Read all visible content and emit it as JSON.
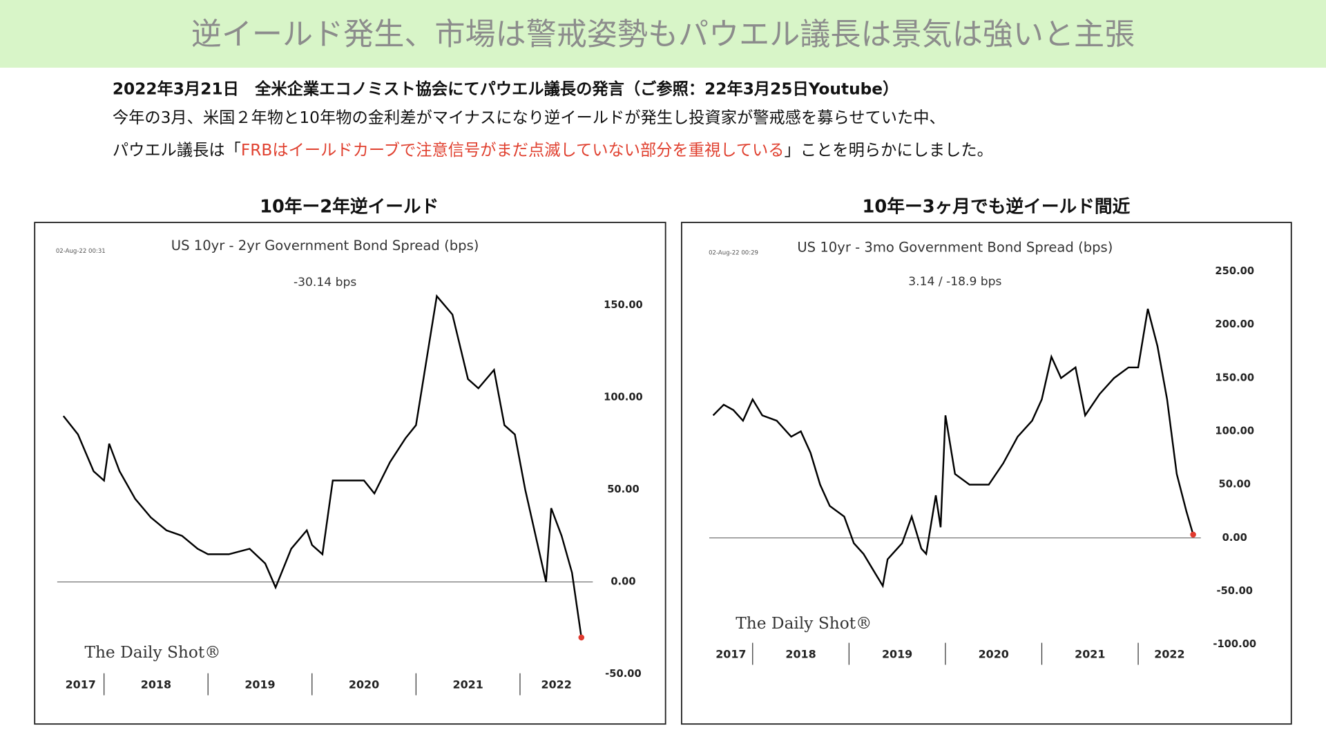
{
  "header": {
    "title": "逆イールド発生、市場は警戒姿勢もパウエル議長は景気は強いと主張",
    "lead": "2022年3月21日　全米企業エコノミスト協会にてパウエル議長の発言（ご参照：22年3月25日Youtube）",
    "line1": "今年の3月、米国２年物と10年物の金利差がマイナスになり逆イールドが発生し投資家が警戒感を募らせていた中、",
    "line2_before": "パウエル議長は「",
    "line2_highlight": "FRBはイールドカーブで注意信号がまだ点滅していない部分を重視している",
    "line2_after": "」ことを明らかにしました。"
  },
  "chart_data": [
    {
      "type": "line",
      "heading": "10年ー2年逆イールド",
      "title": "US 10yr - 2yr Government Bond Spread (bps)",
      "timestamp": "02-Aug-22 00:31",
      "annotation": "-30.14 bps",
      "watermark": "The Daily Shot®",
      "color": "#000000",
      "end_marker_color": "#e03a2f",
      "x": [
        2017.61,
        2017.75,
        2017.9,
        2018.0,
        2018.05,
        2018.15,
        2018.3,
        2018.45,
        2018.6,
        2018.75,
        2018.9,
        2019.0,
        2019.2,
        2019.4,
        2019.55,
        2019.65,
        2019.8,
        2019.95,
        2020.0,
        2020.1,
        2020.2,
        2020.35,
        2020.5,
        2020.6,
        2020.75,
        2020.9,
        2021.0,
        2021.1,
        2021.2,
        2021.35,
        2021.5,
        2021.6,
        2021.75,
        2021.85,
        2021.95,
        2022.05,
        2022.15,
        2022.25,
        2022.3,
        2022.4,
        2022.5,
        2022.59
      ],
      "values": [
        90,
        80,
        60,
        55,
        75,
        60,
        45,
        35,
        28,
        25,
        18,
        15,
        15,
        18,
        10,
        -3,
        18,
        28,
        20,
        15,
        55,
        55,
        55,
        48,
        65,
        78,
        85,
        120,
        155,
        145,
        110,
        105,
        115,
        85,
        80,
        50,
        25,
        0,
        40,
        25,
        5,
        -30.14
      ],
      "xlim": [
        2017.55,
        2022.7
      ],
      "xticks": [
        2017,
        2018,
        2019,
        2020,
        2021,
        2022
      ],
      "ylim": [
        -50,
        165
      ],
      "yticks": [
        {
          "value": -50,
          "label": "-50.00"
        },
        {
          "value": 0,
          "label": "0.00"
        },
        {
          "value": 50,
          "label": "50.00"
        },
        {
          "value": 100,
          "label": "100.00"
        },
        {
          "value": 150,
          "label": "150.00"
        }
      ]
    },
    {
      "type": "line",
      "heading": "10年ー3ヶ月でも逆イールド間近",
      "title": "US 10yr - 3mo Government Bond Spread (bps)",
      "timestamp": "02-Aug-22 00:29",
      "annotation": "3.14  /  -18.9 bps",
      "watermark": "The Daily Shot®",
      "color": "#000000",
      "end_marker_color": "#e03a2f",
      "x": [
        2017.59,
        2017.7,
        2017.8,
        2017.9,
        2018.0,
        2018.1,
        2018.25,
        2018.4,
        2018.5,
        2018.6,
        2018.7,
        2018.8,
        2018.95,
        2019.05,
        2019.15,
        2019.25,
        2019.35,
        2019.4,
        2019.55,
        2019.65,
        2019.75,
        2019.8,
        2019.9,
        2019.95,
        2020.0,
        2020.1,
        2020.25,
        2020.45,
        2020.6,
        2020.75,
        2020.9,
        2021.0,
        2021.1,
        2021.2,
        2021.35,
        2021.45,
        2021.6,
        2021.75,
        2021.9,
        2022.0,
        2022.1,
        2022.2,
        2022.3,
        2022.4,
        2022.5,
        2022.57
      ],
      "values": [
        115,
        125,
        120,
        110,
        130,
        115,
        110,
        95,
        100,
        80,
        50,
        30,
        20,
        -5,
        -15,
        -30,
        -45,
        -20,
        -5,
        20,
        -10,
        -15,
        40,
        10,
        115,
        60,
        50,
        50,
        70,
        95,
        110,
        130,
        170,
        150,
        160,
        115,
        135,
        150,
        160,
        160,
        215,
        180,
        130,
        60,
        25,
        3.14
      ],
      "xlim": [
        2017.55,
        2022.65
      ],
      "xticks": [
        2017,
        2018,
        2019,
        2020,
        2021,
        2022
      ],
      "ylim": [
        -100,
        255
      ],
      "yticks": [
        {
          "value": -100,
          "label": "-100.00"
        },
        {
          "value": -50,
          "label": "-50.00"
        },
        {
          "value": 0,
          "label": "0.00"
        },
        {
          "value": 50,
          "label": "50.00"
        },
        {
          "value": 100,
          "label": "100.00"
        },
        {
          "value": 150,
          "label": "150.00"
        },
        {
          "value": 200,
          "label": "200.00"
        },
        {
          "value": 250,
          "label": "250.00"
        }
      ]
    }
  ]
}
